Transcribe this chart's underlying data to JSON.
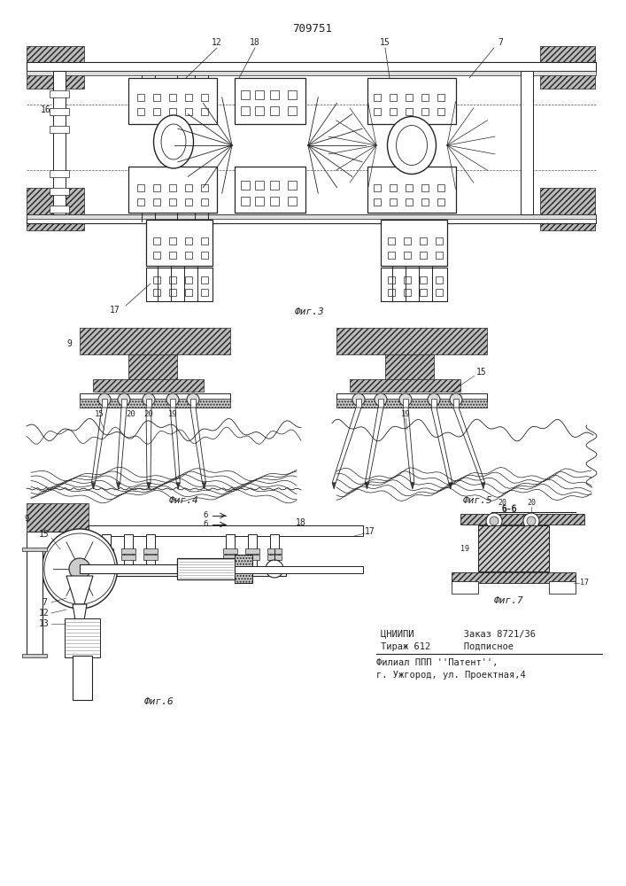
{
  "title": "709751",
  "background_color": "#ffffff",
  "line_color": "#222222",
  "footer_line1": "ЦНИИПИ         Заказ 8721/36",
  "footer_line2": "Тираж 612      Подписное",
  "footer_line3": "Филиал ППП ''Патент'',",
  "footer_line4": "г. Ужгород, ул. Проектная,4",
  "fig3_label": "Фиг.3",
  "fig4_label": "Фиг.4",
  "fig5_label": "Фиг.5",
  "fig6_label": "Фиг.6",
  "fig7_label": "Фиг.7",
  "bb_label": "б-б"
}
